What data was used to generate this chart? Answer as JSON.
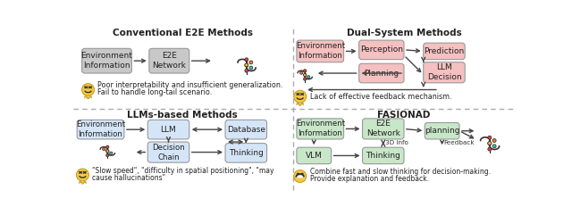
{
  "bg_color": "#ffffff",
  "box_gray": "#c8c8c8",
  "box_gray_light": "#d0d0d0",
  "box_pink": "#f5c0c0",
  "box_pink_light": "#fad4d4",
  "box_blue": "#c5d8f0",
  "box_blue_light": "#d5e5f8",
  "box_green": "#c8e6c8",
  "box_green_light": "#d8edd8",
  "text_color": "#222222",
  "arrow_color": "#444444",
  "divider_color": "#999999",
  "title_tl": "Conventional E2E Methods",
  "title_tr": "Dual-System Methods",
  "title_bl": "LLMs-based Methods",
  "title_br": "FASIONAD",
  "emoji_color": "#f5c842",
  "emoji_edge": "#c8a020"
}
